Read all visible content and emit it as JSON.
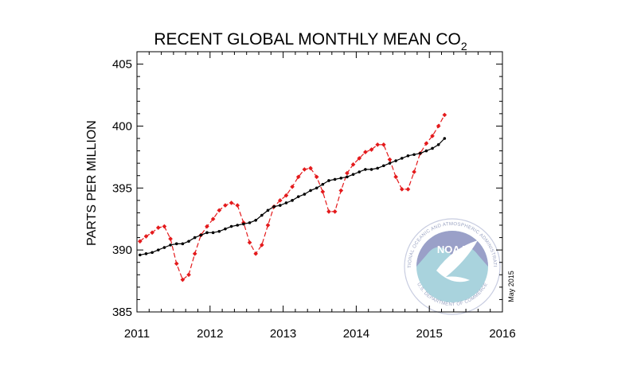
{
  "chart_data": {
    "type": "line",
    "title": "RECENT GLOBAL MONTHLY MEAN CO",
    "title_subscript": "2",
    "xlabel": "",
    "ylabel": "PARTS PER MILLION",
    "xlim": [
      2011,
      2016
    ],
    "ylim": [
      385,
      406
    ],
    "x_ticks": [
      "2011",
      "2012",
      "2013",
      "2014",
      "2015",
      "2016"
    ],
    "y_ticks": [
      "385",
      "390",
      "395",
      "400",
      "405"
    ],
    "grid": false,
    "legend": "none",
    "annotation": "May 2015",
    "logo_text": {
      "name": "NOAA",
      "ring_top": "NATIONAL OCEANIC AND ATMOSPHERIC ADMINISTRATION",
      "ring_bottom": "U.S. DEPARTMENT OF COMMERCE"
    },
    "series": [
      {
        "color": "#e41a1c",
        "style": "dashed",
        "x_start": "2011-01",
        "values": [
          390.7,
          391.1,
          391.4,
          391.8,
          391.9,
          390.9,
          388.9,
          387.6,
          388.0,
          389.7,
          391.2,
          391.9,
          392.5,
          393.2,
          393.6,
          393.8,
          393.6,
          392.2,
          390.6,
          389.7,
          390.4,
          392.0,
          393.5,
          394.0,
          394.4,
          395.1,
          395.9,
          396.5,
          396.6,
          395.9,
          394.7,
          393.1,
          393.1,
          394.8,
          396.2,
          396.9,
          397.4,
          397.9,
          398.1,
          398.5,
          398.5,
          397.3,
          395.9,
          394.9,
          394.9,
          396.3,
          397.8,
          398.6,
          399.2,
          400.0,
          400.9
        ]
      },
      {
        "color": "#000000",
        "style": "solid",
        "x_start": "2011-01",
        "values": [
          389.6,
          389.7,
          389.8,
          390.0,
          390.2,
          390.4,
          390.5,
          390.5,
          390.7,
          391.0,
          391.2,
          391.4,
          391.4,
          391.5,
          391.7,
          391.9,
          392.0,
          392.1,
          392.2,
          392.4,
          392.8,
          393.2,
          393.5,
          393.6,
          393.8,
          394.0,
          394.3,
          394.5,
          394.8,
          395.0,
          395.3,
          395.6,
          395.7,
          395.8,
          395.9,
          396.1,
          396.3,
          396.5,
          396.5,
          396.6,
          396.8,
          397.0,
          397.2,
          397.4,
          397.6,
          397.7,
          397.8,
          398.0,
          398.2,
          398.5,
          399.0
        ]
      }
    ]
  }
}
